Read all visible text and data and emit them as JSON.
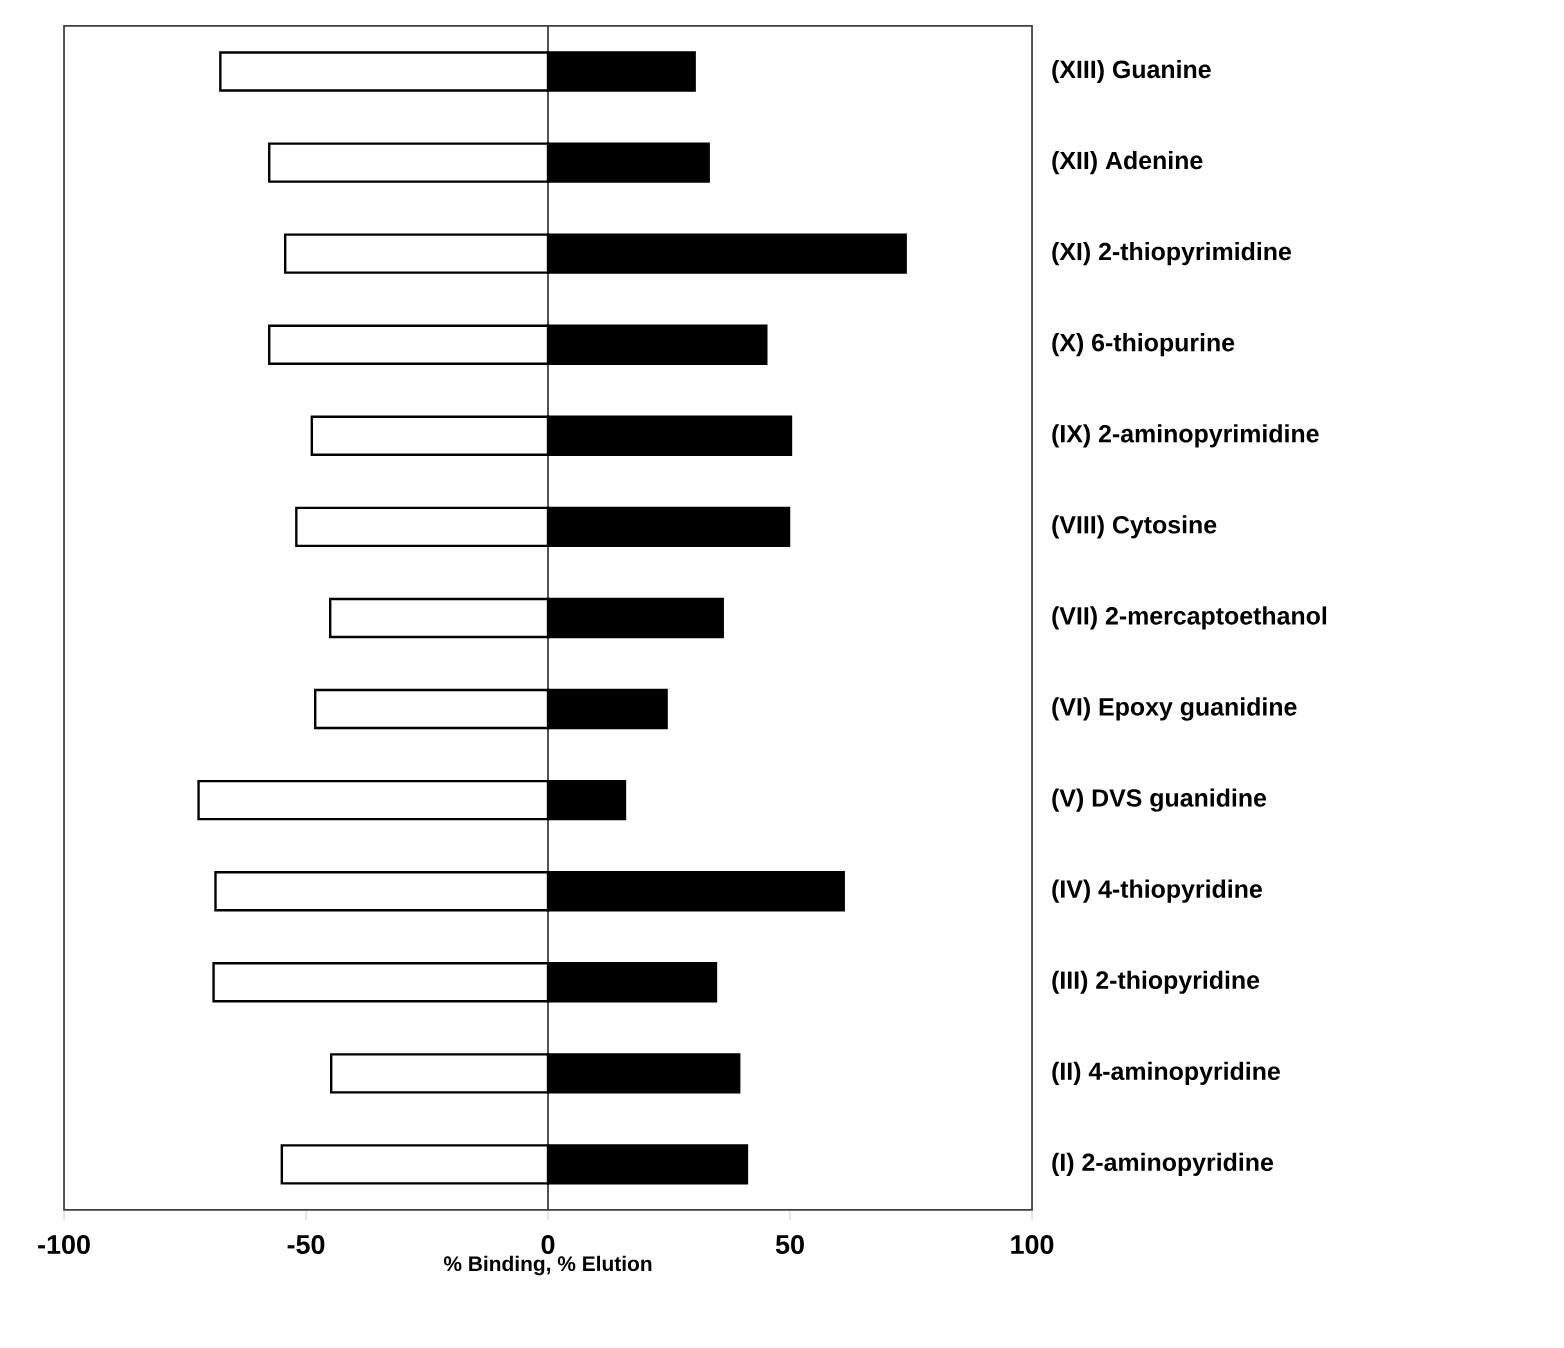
{
  "chart_data": {
    "type": "bar",
    "orientation": "horizontal",
    "xlabel": "% Binding, % Elution",
    "categories": [
      "(XIII) Guanine",
      "(XII) Adenine",
      "(XI) 2-thiopyrimidine",
      "(X) 6-thiopurine",
      "(IX) 2-aminopyrimidine",
      "(VIII) Cytosine",
      "(VII) 2-mercaptoethanol",
      "(VI) Epoxy guanidine",
      "(V) DVS guanidine",
      "(IV) 4-thiopyridine",
      "(III) 2-thiopyridine",
      "(II) 4-aminopyridine",
      "(I) 2-aminopyridine"
    ],
    "series": [
      {
        "color": "#ffffff",
        "values": [
          -67.7,
          -57.6,
          -54.3,
          -57.6,
          -48.8,
          -52.0,
          -45.0,
          -48.1,
          -72.2,
          -68.7,
          -69.1,
          -44.8,
          -55.0
        ]
      },
      {
        "color": "#000000",
        "values": [
          30.3,
          33.2,
          73.9,
          45.1,
          50.2,
          49.8,
          36.1,
          24.5,
          15.9,
          61.1,
          34.7,
          39.5,
          41.1
        ]
      }
    ],
    "stacked": true,
    "xlim": [
      -100,
      100
    ],
    "xticks": [
      -100,
      -50,
      0,
      50,
      100
    ]
  }
}
